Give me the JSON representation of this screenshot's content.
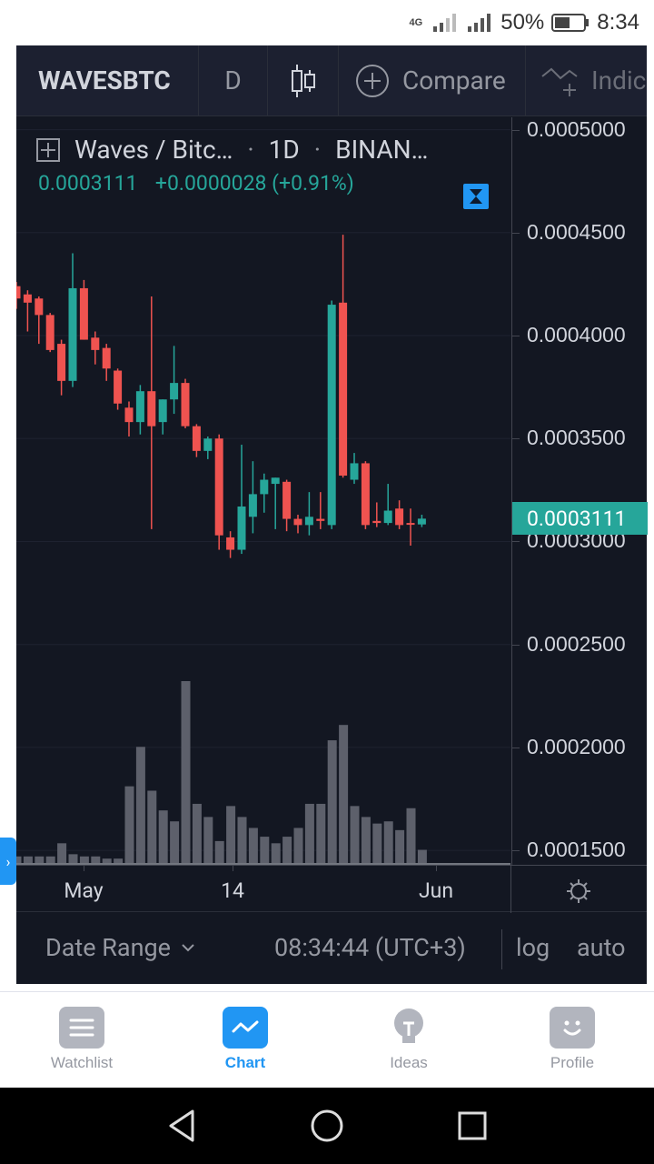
{
  "status_bar": {
    "network": "4G",
    "battery": "50%",
    "time": "8:34"
  },
  "toolbar": {
    "symbol": "WAVESBTC",
    "interval": "D",
    "compare_label": "Compare",
    "indicators_label": "Indic"
  },
  "legend": {
    "title": "Waves / Bitc…",
    "interval": "1D",
    "exchange": "BINAN…",
    "price": "0.0003111",
    "change": "+0.0000028 (+0.91%)"
  },
  "price_scale": {
    "labels": [
      "0.0005000",
      "0.0004500",
      "0.0004000",
      "0.0003500",
      "0.0003000",
      "0.0002500",
      "0.0002000",
      "0.0001500"
    ],
    "last_price": "0.0003111"
  },
  "time_axis": {
    "labels": [
      "May",
      "14",
      "Jun"
    ]
  },
  "bottom_bar": {
    "date_range_label": "Date Range",
    "clock": "08:34:44 (UTC+3)",
    "log_label": "log",
    "auto_label": "auto"
  },
  "nav": {
    "items": [
      {
        "label": "Watchlist",
        "icon": "list-icon"
      },
      {
        "label": "Chart",
        "icon": "chart-icon"
      },
      {
        "label": "Ideas",
        "icon": "lightbulb-icon"
      },
      {
        "label": "Profile",
        "icon": "smiley-icon"
      }
    ]
  },
  "colors": {
    "up": "#26a69a",
    "down": "#ef5350",
    "background": "#131722",
    "accent": "#2196f3",
    "volume": "#787b86"
  },
  "chart_data": {
    "type": "candlestick",
    "title": "Waves / Bitc…",
    "yaxis_labels": [
      "0.0005000",
      "0.0004500",
      "0.0004000",
      "0.0003500",
      "0.0003000",
      "0.0002500",
      "0.0002000",
      "0.0001500"
    ],
    "ylim": [
      0.000143,
      0.000506
    ],
    "xaxis_labels": [
      "May",
      "14",
      "Jun"
    ],
    "candles": [
      {
        "o": 0.000424,
        "h": 0.000426,
        "l": 0.000413,
        "c": 0.000418
      },
      {
        "o": 0.00042,
        "h": 0.000422,
        "l": 0.000402,
        "c": 0.000416
      },
      {
        "o": 0.000418,
        "h": 0.000419,
        "l": 0.000396,
        "c": 0.00041
      },
      {
        "o": 0.00041,
        "h": 0.000411,
        "l": 0.000392,
        "c": 0.000393
      },
      {
        "o": 0.000396,
        "h": 0.000398,
        "l": 0.000371,
        "c": 0.000378
      },
      {
        "o": 0.000378,
        "h": 0.00044,
        "l": 0.000375,
        "c": 0.000423
      },
      {
        "o": 0.000423,
        "h": 0.000427,
        "l": 0.000398,
        "c": 0.000398
      },
      {
        "o": 0.000399,
        "h": 0.000402,
        "l": 0.000386,
        "c": 0.000393
      },
      {
        "o": 0.000394,
        "h": 0.000396,
        "l": 0.000378,
        "c": 0.000384
      },
      {
        "o": 0.000383,
        "h": 0.000384,
        "l": 0.000364,
        "c": 0.000367
      },
      {
        "o": 0.000365,
        "h": 0.000368,
        "l": 0.000351,
        "c": 0.000358
      },
      {
        "o": 0.000358,
        "h": 0.000376,
        "l": 0.000352,
        "c": 0.000373
      },
      {
        "o": 0.000373,
        "h": 0.000419,
        "l": 0.000306,
        "c": 0.000356
      },
      {
        "o": 0.000358,
        "h": 0.000369,
        "l": 0.000352,
        "c": 0.000369
      },
      {
        "o": 0.000369,
        "h": 0.000395,
        "l": 0.000362,
        "c": 0.000377
      },
      {
        "o": 0.000377,
        "h": 0.000379,
        "l": 0.000355,
        "c": 0.000356
      },
      {
        "o": 0.000356,
        "h": 0.000357,
        "l": 0.000341,
        "c": 0.000344
      },
      {
        "o": 0.000344,
        "h": 0.000351,
        "l": 0.00034,
        "c": 0.00035
      },
      {
        "o": 0.00035,
        "h": 0.000352,
        "l": 0.000296,
        "c": 0.000303
      },
      {
        "o": 0.000302,
        "h": 0.000305,
        "l": 0.000292,
        "c": 0.000296
      },
      {
        "o": 0.000296,
        "h": 0.000347,
        "l": 0.000294,
        "c": 0.000317
      },
      {
        "o": 0.000312,
        "h": 0.000339,
        "l": 0.000304,
        "c": 0.000323
      },
      {
        "o": 0.000323,
        "h": 0.000333,
        "l": 0.000314,
        "c": 0.00033
      },
      {
        "o": 0.000328,
        "h": 0.000331,
        "l": 0.000306,
        "c": 0.000331
      },
      {
        "o": 0.000329,
        "h": 0.00033,
        "l": 0.000305,
        "c": 0.000311
      },
      {
        "o": 0.000311,
        "h": 0.000313,
        "l": 0.000304,
        "c": 0.000308
      },
      {
        "o": 0.000308,
        "h": 0.000324,
        "l": 0.000303,
        "c": 0.000312
      },
      {
        "o": 0.000311,
        "h": 0.000324,
        "l": 0.000306,
        "c": 0.00031
      },
      {
        "o": 0.000308,
        "h": 0.000417,
        "l": 0.000306,
        "c": 0.000415
      },
      {
        "o": 0.000416,
        "h": 0.000449,
        "l": 0.000331,
        "c": 0.000332
      },
      {
        "o": 0.00033,
        "h": 0.000343,
        "l": 0.000328,
        "c": 0.000338
      },
      {
        "o": 0.000338,
        "h": 0.000339,
        "l": 0.000306,
        "c": 0.000308
      },
      {
        "o": 0.00031,
        "h": 0.000319,
        "l": 0.000307,
        "c": 0.000309
      },
      {
        "o": 0.000309,
        "h": 0.000328,
        "l": 0.000308,
        "c": 0.000315
      },
      {
        "o": 0.000316,
        "h": 0.00032,
        "l": 0.000306,
        "c": 0.000308
      },
      {
        "o": 0.000309,
        "h": 0.000316,
        "l": 0.000298,
        "c": 0.0003083
      },
      {
        "o": 0.0003083,
        "h": 0.000313,
        "l": 0.000307,
        "c": 0.0003111
      }
    ],
    "volume": [
      6,
      6,
      6,
      6,
      18,
      8,
      6,
      6,
      4,
      4,
      70,
      106,
      66,
      48,
      38,
      166,
      54,
      42,
      20,
      52,
      42,
      32,
      24,
      18,
      24,
      32,
      54,
      54,
      112,
      126,
      52,
      42,
      36,
      38,
      30,
      50,
      12
    ],
    "volume_max": 166,
    "last_price": 0.0003111
  }
}
